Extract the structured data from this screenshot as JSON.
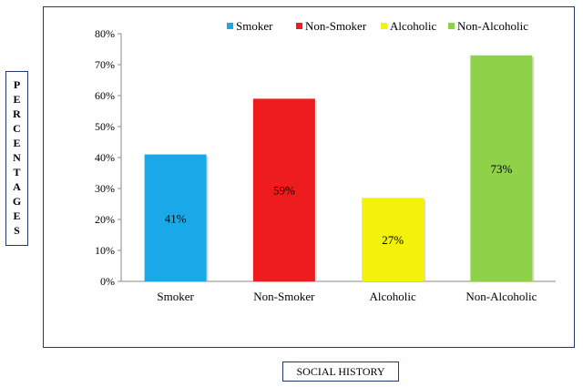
{
  "chart_data": {
    "type": "bar",
    "title": "",
    "xlabel": "SOCIAL HISTORY",
    "ylabel": "PERCENTAGES",
    "categories": [
      "Smoker",
      "Non-Smoker",
      "Alcoholic",
      "Non-Alcoholic"
    ],
    "values": [
      41,
      59,
      27,
      73
    ],
    "data_labels": [
      "41%",
      "59%",
      "27%",
      "73%"
    ],
    "colors": [
      "#1aa9e8",
      "#ee1c1c",
      "#f2f20a",
      "#8fd24a"
    ],
    "ylim": [
      0,
      80
    ],
    "yticks": [
      0,
      10,
      20,
      30,
      40,
      50,
      60,
      70,
      80
    ],
    "ytick_labels": [
      "0%",
      "10%",
      "20%",
      "30%",
      "40%",
      "50%",
      "60%",
      "70%",
      "80%"
    ],
    "legend": {
      "placement": "top-right",
      "entries": [
        "Smoker",
        "Non-Smoker",
        "Alcoholic",
        "Non-Alcoholic"
      ]
    },
    "grid": false
  }
}
